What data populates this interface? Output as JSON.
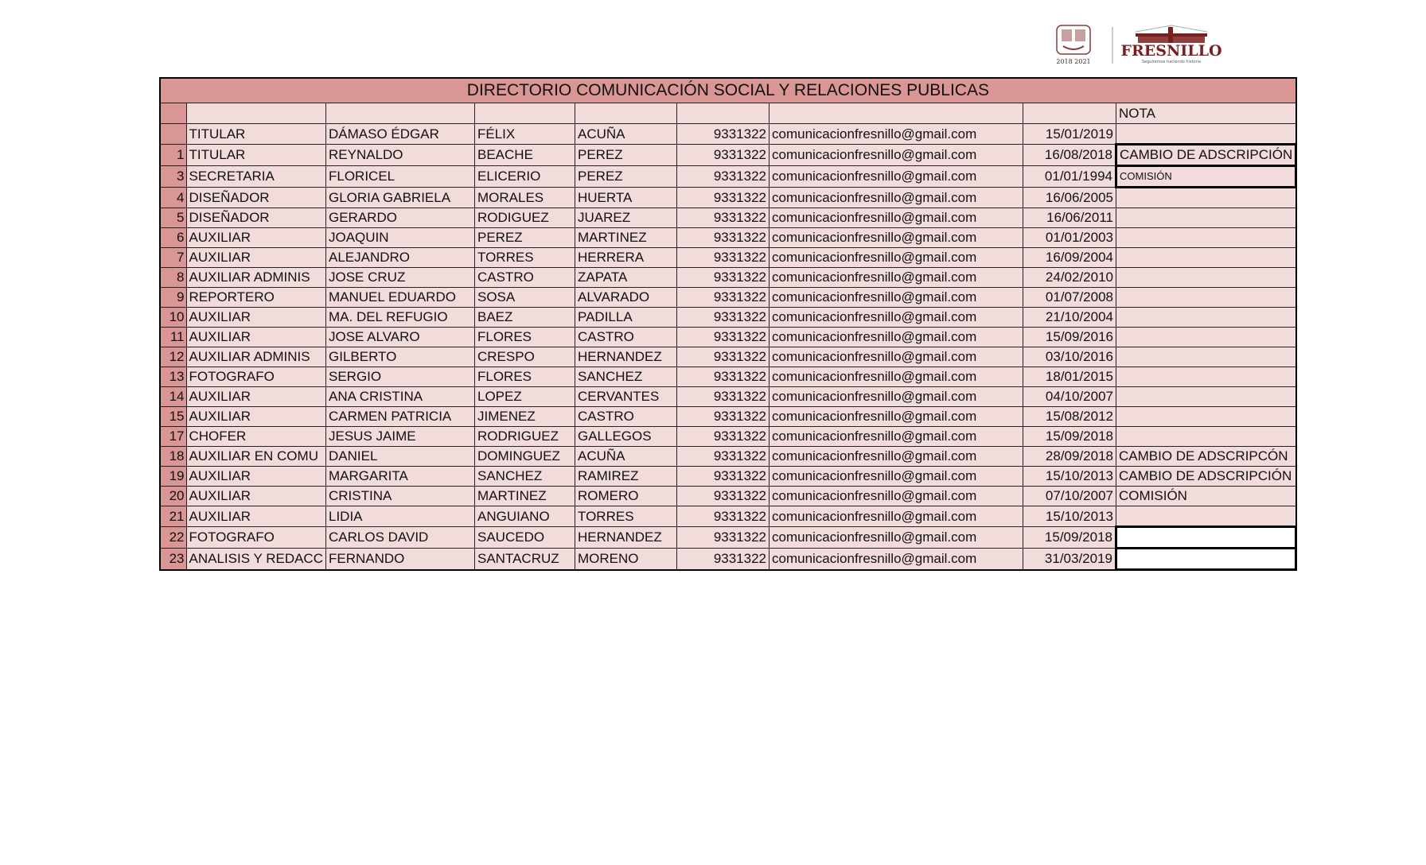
{
  "logo": {
    "crest_text": "2018 2021",
    "brand": "FRESNILLO",
    "tagline": "Seguiremos haciendo historia"
  },
  "title": "DIRECTORIO COMUNICACIÓN SOCIAL Y RELACIONES PUBLICAS",
  "header": {
    "nota": "NOTA"
  },
  "rows": [
    {
      "num": "",
      "puesto": "TITULAR",
      "nombre": "DÁMASO ÉDGAR",
      "ap1": "FÉLIX",
      "ap2": "ACUÑA",
      "tel": "9331322",
      "email": "comunicacionfresnillo@gmail.com",
      "fecha": "15/01/2019",
      "nota": ""
    },
    {
      "num": "1",
      "puesto": "TITULAR",
      "nombre": "REYNALDO",
      "ap1": "BEACHE",
      "ap2": "PEREZ",
      "tel": "9331322",
      "email": "comunicacionfresnillo@gmail.com",
      "fecha": "16/08/2018",
      "nota": "CAMBIO DE ADSCRIPCIÓN"
    },
    {
      "num": "3",
      "puesto": "SECRETARIA",
      "nombre": "FLORICEL",
      "ap1": "ELICERIO",
      "ap2": "PEREZ",
      "tel": "9331322",
      "email": "comunicacionfresnillo@gmail.com",
      "fecha": "01/01/1994",
      "nota": "COMISIÓN"
    },
    {
      "num": "4",
      "puesto": "DISEÑADOR",
      "nombre": "GLORIA GABRIELA",
      "ap1": "MORALES",
      "ap2": "HUERTA",
      "tel": "9331322",
      "email": "comunicacionfresnillo@gmail.com",
      "fecha": "16/06/2005",
      "nota": ""
    },
    {
      "num": "5",
      "puesto": "DISEÑADOR",
      "nombre": "GERARDO",
      "ap1": "RODIGUEZ",
      "ap2": "JUAREZ",
      "tel": "9331322",
      "email": "comunicacionfresnillo@gmail.com",
      "fecha": "16/06/2011",
      "nota": ""
    },
    {
      "num": "6",
      "puesto": "AUXILIAR",
      "nombre": "JOAQUIN",
      "ap1": "PEREZ",
      "ap2": "MARTINEZ",
      "tel": "9331322",
      "email": "comunicacionfresnillo@gmail.com",
      "fecha": "01/01/2003",
      "nota": ""
    },
    {
      "num": "7",
      "puesto": "AUXILIAR",
      "nombre": "ALEJANDRO",
      "ap1": "TORRES",
      "ap2": "HERRERA",
      "tel": "9331322",
      "email": "comunicacionfresnillo@gmail.com",
      "fecha": "16/09/2004",
      "nota": ""
    },
    {
      "num": "8",
      "puesto": "AUXILIAR ADMINIS",
      "nombre": "JOSE CRUZ",
      "ap1": "CASTRO",
      "ap2": "ZAPATA",
      "tel": "9331322",
      "email": "comunicacionfresnillo@gmail.com",
      "fecha": "24/02/2010",
      "nota": ""
    },
    {
      "num": "9",
      "puesto": "REPORTERO",
      "nombre": "MANUEL EDUARDO",
      "ap1": "SOSA",
      "ap2": "ALVARADO",
      "tel": "9331322",
      "email": "comunicacionfresnillo@gmail.com",
      "fecha": "01/07/2008",
      "nota": ""
    },
    {
      "num": "10",
      "puesto": "AUXILIAR",
      "nombre": "MA. DEL REFUGIO",
      "ap1": "BAEZ",
      "ap2": "PADILLA",
      "tel": "9331322",
      "email": "comunicacionfresnillo@gmail.com",
      "fecha": "21/10/2004",
      "nota": ""
    },
    {
      "num": "11",
      "puesto": "AUXILIAR",
      "nombre": "JOSE ALVARO",
      "ap1": "FLORES",
      "ap2": "CASTRO",
      "tel": "9331322",
      "email": "comunicacionfresnillo@gmail.com",
      "fecha": "15/09/2016",
      "nota": ""
    },
    {
      "num": "12",
      "puesto": "AUXILIAR ADMINIS",
      "nombre": "GILBERTO",
      "ap1": "CRESPO",
      "ap2": "HERNANDEZ",
      "tel": "9331322",
      "email": "comunicacionfresnillo@gmail.com",
      "fecha": "03/10/2016",
      "nota": ""
    },
    {
      "num": "13",
      "puesto": "FOTOGRAFO",
      "nombre": "SERGIO",
      "ap1": "FLORES",
      "ap2": "SANCHEZ",
      "tel": "9331322",
      "email": "comunicacionfresnillo@gmail.com",
      "fecha": "18/01/2015",
      "nota": ""
    },
    {
      "num": "14",
      "puesto": "AUXILIAR",
      "nombre": "ANA CRISTINA",
      "ap1": "LOPEZ",
      "ap2": "CERVANTES",
      "tel": "9331322",
      "email": "comunicacionfresnillo@gmail.com",
      "fecha": "04/10/2007",
      "nota": ""
    },
    {
      "num": "15",
      "puesto": "AUXILIAR",
      "nombre": "CARMEN PATRICIA",
      "ap1": "JIMENEZ",
      "ap2": "CASTRO",
      "tel": "9331322",
      "email": "comunicacionfresnillo@gmail.com",
      "fecha": "15/08/2012",
      "nota": ""
    },
    {
      "num": "17",
      "puesto": "CHOFER",
      "nombre": "JESUS JAIME",
      "ap1": "RODRIGUEZ",
      "ap2": "GALLEGOS",
      "tel": "9331322",
      "email": "comunicacionfresnillo@gmail.com",
      "fecha": "15/09/2018",
      "nota": ""
    },
    {
      "num": "18",
      "puesto": "AUXILIAR EN COMU",
      "nombre": "DANIEL",
      "ap1": "DOMINGUEZ",
      "ap2": "ACUÑA",
      "tel": "9331322",
      "email": "comunicacionfresnillo@gmail.com",
      "fecha": "28/09/2018",
      "nota": "CAMBIO DE ADSCRIPCÓN"
    },
    {
      "num": "19",
      "puesto": "AUXILIAR",
      "nombre": "MARGARITA",
      "ap1": "SANCHEZ",
      "ap2": "RAMIREZ",
      "tel": "9331322",
      "email": "comunicacionfresnillo@gmail.com",
      "fecha": "15/10/2013",
      "nota": "CAMBIO DE ADSCRIPCIÓN"
    },
    {
      "num": "20",
      "puesto": "AUXILIAR",
      "nombre": "CRISTINA",
      "ap1": "MARTINEZ",
      "ap2": "ROMERO",
      "tel": "9331322",
      "email": "comunicacionfresnillo@gmail.com",
      "fecha": "07/10/2007",
      "nota": "COMISIÓN"
    },
    {
      "num": "21",
      "puesto": "AUXILIAR",
      "nombre": "LIDIA",
      "ap1": "ANGUIANO",
      "ap2": "TORRES",
      "tel": "9331322",
      "email": "comunicacionfresnillo@gmail.com",
      "fecha": "15/10/2013",
      "nota": ""
    },
    {
      "num": "22",
      "puesto": "FOTOGRAFO",
      "nombre": "CARLOS DAVID",
      "ap1": "SAUCEDO",
      "ap2": "HERNANDEZ",
      "tel": "9331322",
      "email": "comunicacionfresnillo@gmail.com",
      "fecha": "15/09/2018",
      "nota": ""
    },
    {
      "num": "23",
      "puesto": "ANALISIS Y REDACC",
      "nombre": "FERNANDO",
      "ap1": "SANTACRUZ",
      "ap2": "MORENO",
      "tel": "9331322",
      "email": "comunicacionfresnillo@gmail.com",
      "fecha": "31/03/2019",
      "nota": ""
    }
  ]
}
